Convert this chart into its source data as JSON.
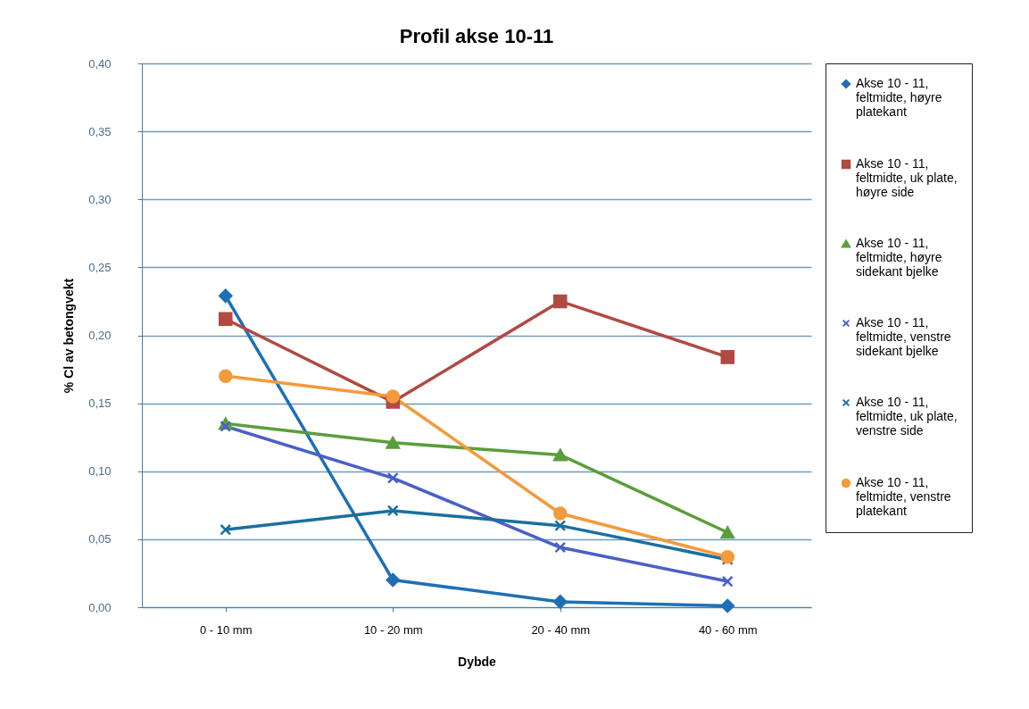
{
  "chart_data": {
    "type": "line",
    "title": "Profil  akse 10-11",
    "xlabel": "Dybde",
    "ylabel": "% Cl av betongvekt",
    "categories": [
      "0 - 10 mm",
      "10 - 20 mm",
      "20 - 40 mm",
      "40 - 60 mm"
    ],
    "ylim": [
      0,
      0.4
    ],
    "yticks": [
      {
        "value": 0,
        "label": "0,00"
      },
      {
        "value": 0.05,
        "label": "0,05"
      },
      {
        "value": 0.1,
        "label": "0,10"
      },
      {
        "value": 0.15,
        "label": "0,15"
      },
      {
        "value": 0.2,
        "label": "0,20"
      },
      {
        "value": 0.25,
        "label": "0,25"
      },
      {
        "value": 0.3,
        "label": "0,30"
      },
      {
        "value": 0.35,
        "label": "0,35"
      },
      {
        "value": 0.4,
        "label": "0,40"
      }
    ],
    "grid": "y",
    "legend": "right",
    "series": [
      {
        "name": "Akse 10 - 11, feltmidte, høyre platekant",
        "color": "#1f6fb4",
        "marker": "diamond",
        "values": [
          0.229,
          0.02,
          0.004,
          0.001
        ]
      },
      {
        "name": "Akse 10 - 11, feltmidte, uk plate, høyre side",
        "color": "#b04a43",
        "marker": "square",
        "values": [
          0.212,
          0.151,
          0.225,
          0.184
        ]
      },
      {
        "name": "Akse 10 - 11, feltmidte, høyre sidekant bjelke",
        "color": "#5a9e3c",
        "marker": "triangle",
        "values": [
          0.135,
          0.121,
          0.112,
          0.055
        ]
      },
      {
        "name": "Akse 10 - 11, feltmidte, venstre sidekant bjelke",
        "color": "#4a5fc8",
        "marker": "cross",
        "values": [
          0.133,
          0.095,
          0.044,
          0.019
        ]
      },
      {
        "name": "Akse 10 - 11, feltmidte, uk plate, venstre side",
        "color": "#1a6fa0",
        "marker": "cross",
        "values": [
          0.057,
          0.071,
          0.06,
          0.035
        ]
      },
      {
        "name": "Akse 10 - 11, feltmidte, venstre platekant",
        "color": "#f39a3c",
        "marker": "circle",
        "values": [
          0.17,
          0.155,
          0.069,
          0.037
        ]
      }
    ]
  }
}
